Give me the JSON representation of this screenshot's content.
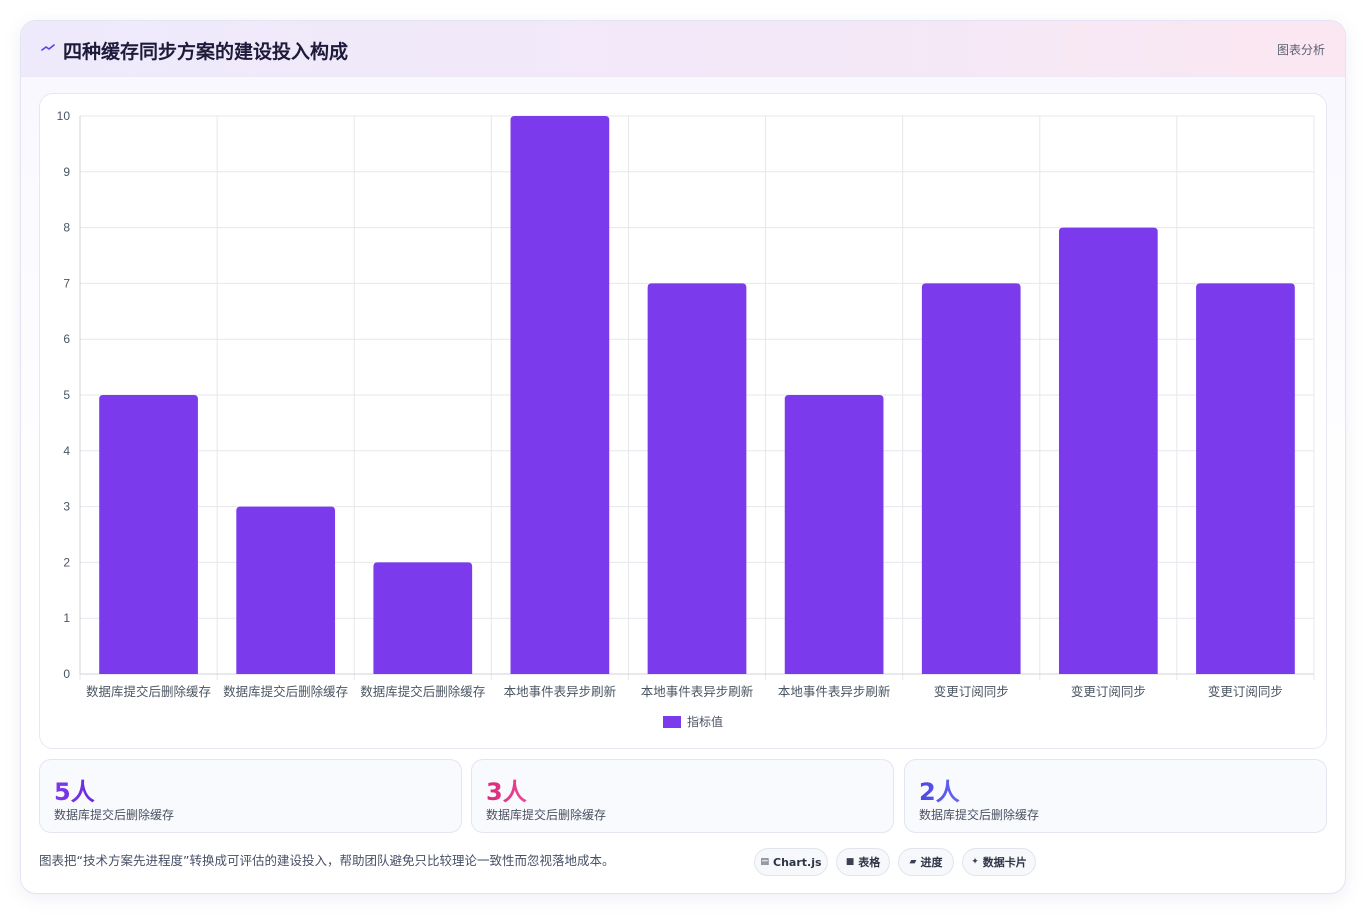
{
  "header": {
    "title": "四种缓存同步方案的建设投入构成",
    "icon": "trend-line-icon",
    "tag": "图表分析"
  },
  "chart_data": {
    "type": "bar",
    "categories": [
      "数据库提交后删除缓存",
      "数据库提交后删除缓存",
      "数据库提交后删除缓存",
      "本地事件表异步刷新",
      "本地事件表异步刷新",
      "本地事件表异步刷新",
      "变更订阅同步",
      "变更订阅同步",
      "变更订阅同步"
    ],
    "series": [
      {
        "name": "指标值",
        "values": [
          5,
          3,
          2,
          10,
          7,
          5,
          7,
          8,
          7
        ],
        "color": "#7c3aed"
      }
    ],
    "ylim": [
      0,
      10
    ],
    "yticks": [
      "0",
      "1",
      "2",
      "3",
      "4",
      "5",
      "6",
      "7",
      "8",
      "9",
      "10"
    ],
    "grid": true,
    "legend_position": "bottom"
  },
  "stats": [
    {
      "value": "5人",
      "label": "数据库提交后删除缓存",
      "gradient": [
        "#7c3aed",
        "#6d28d9"
      ]
    },
    {
      "value": "3人",
      "label": "数据库提交后删除缓存",
      "gradient": [
        "#db2777",
        "#ec4899"
      ]
    },
    {
      "value": "2人",
      "label": "数据库提交后删除缓存",
      "gradient": [
        "#4f46e5",
        "#6366f1"
      ]
    }
  ],
  "footnote": "图表把“技术方案先进程度”转换成可评估的建设投入，帮助团队避免只比较理论一致性而忽视落地成本。",
  "pills": [
    {
      "icon": "chart-icon",
      "glyph": "▤",
      "label": "Chart.js"
    },
    {
      "icon": "table-icon",
      "glyph": "■",
      "label": "表格"
    },
    {
      "icon": "progress-icon",
      "glyph": "▰",
      "label": "进度"
    },
    {
      "icon": "sparkle-icon",
      "glyph": "✦",
      "label": "数据卡片"
    }
  ]
}
